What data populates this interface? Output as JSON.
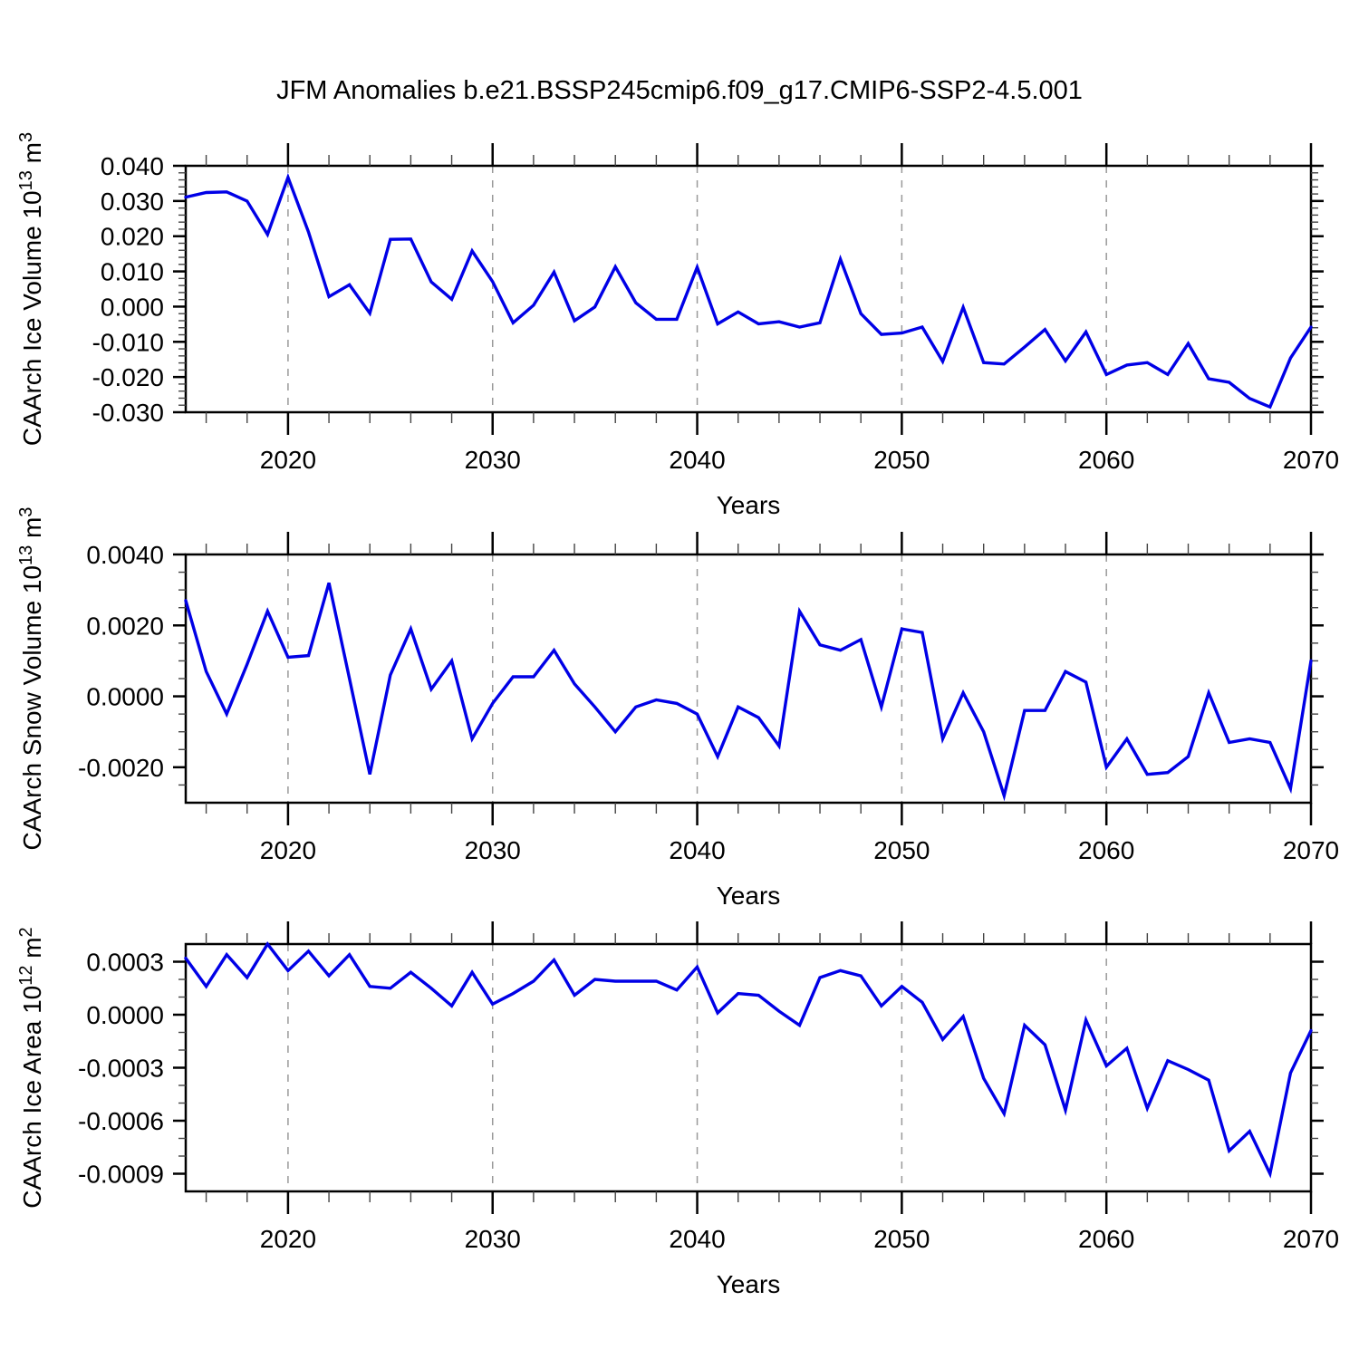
{
  "title": "JFM Anomalies b.e21.BSSP245cmip6.f09_g17.CMIP6-SSP2-4.5.001",
  "line_color": "#0000e6",
  "axis_color": "#000000",
  "minor_tick_color": "#444444",
  "grid_color": "#999999",
  "chart_data": {
    "type": "line",
    "title": "JFM Anomalies b.e21.BSSP245cmip6.f09_g17.CMIP6-SSP2-4.5.001",
    "legend": "none",
    "grid": "vertical-dashed-at-decades",
    "x": {
      "label": "Years",
      "xlim": [
        2015,
        2070
      ],
      "major_ticks": [
        2020,
        2030,
        2040,
        2050,
        2060,
        2070
      ],
      "major_tick_labels": [
        "2020",
        "2030",
        "2040",
        "2050",
        "2060",
        "2070"
      ],
      "minor_step": 2,
      "grid_years": [
        2020,
        2030,
        2040,
        2050,
        2060
      ],
      "years": [
        2015,
        2016,
        2017,
        2018,
        2019,
        2020,
        2021,
        2022,
        2023,
        2024,
        2025,
        2026,
        2027,
        2028,
        2029,
        2030,
        2031,
        2032,
        2033,
        2034,
        2035,
        2036,
        2037,
        2038,
        2039,
        2040,
        2041,
        2042,
        2043,
        2044,
        2045,
        2046,
        2047,
        2048,
        2049,
        2050,
        2051,
        2052,
        2053,
        2054,
        2055,
        2056,
        2057,
        2058,
        2059,
        2060,
        2061,
        2062,
        2063,
        2064,
        2065,
        2066,
        2067,
        2068,
        2069,
        2070
      ]
    },
    "panels": [
      {
        "name": "ice-volume",
        "ylabel": "CAArch Ice Volume 10^13 m^3",
        "ylabel_parts": [
          {
            "t": "CAArch Ice Volume 10"
          },
          {
            "t": "13",
            "sup": true
          },
          {
            "t": " m"
          },
          {
            "t": "3",
            "sup": true
          }
        ],
        "xlabel": "Years",
        "ylim": [
          -0.03,
          0.04
        ],
        "ytick_values": [
          0.04,
          0.03,
          0.02,
          0.01,
          0.0,
          -0.01,
          -0.02,
          -0.03
        ],
        "ytick_labels": [
          "0.040",
          "0.030",
          "0.020",
          "0.010",
          "0.000",
          "-0.010",
          "-0.020",
          "-0.030"
        ],
        "y_major_step": 0.01,
        "y_minor_step": 0.002,
        "values": [
          0.0311,
          0.0324,
          0.0326,
          0.03,
          0.0205,
          0.0367,
          0.0212,
          0.0028,
          0.0062,
          -0.0019,
          0.0191,
          0.0192,
          0.007,
          0.0021,
          0.0158,
          0.0071,
          -0.0046,
          0.0004,
          0.0098,
          -0.004,
          -0.0001,
          0.0113,
          0.0011,
          -0.0036,
          -0.0036,
          0.0112,
          -0.0049,
          -0.0015,
          -0.0049,
          -0.0043,
          -0.0058,
          -0.0046,
          0.0135,
          -0.002,
          -0.0079,
          -0.0075,
          -0.0058,
          -0.0156,
          -0.0002,
          -0.0159,
          -0.0163,
          -0.0115,
          -0.0065,
          -0.0154,
          -0.0072,
          -0.0193,
          -0.0166,
          -0.0159,
          -0.0193,
          -0.0105,
          -0.0205,
          -0.0215,
          -0.0261,
          -0.0285,
          -0.0146,
          -0.0058
        ]
      },
      {
        "name": "snow-volume",
        "ylabel": "CAArch Snow Volume 10^13 m^3",
        "ylabel_parts": [
          {
            "t": "CAArch Snow Volume 10"
          },
          {
            "t": "13",
            "sup": true
          },
          {
            "t": " m"
          },
          {
            "t": "3",
            "sup": true
          }
        ],
        "xlabel": "Years",
        "ylim": [
          -0.003,
          0.004
        ],
        "ytick_values": [
          0.004,
          0.002,
          0.0,
          -0.002
        ],
        "ytick_labels": [
          "0.0040",
          "0.0020",
          "0.0000",
          "-0.0020"
        ],
        "y_major_step": 0.002,
        "y_minor_step": 0.0005,
        "values": [
          0.0027,
          0.0007,
          -0.0005,
          0.0009,
          0.0024,
          0.0011,
          0.00115,
          0.0032,
          0.0005,
          -0.0022,
          0.0006,
          0.0019,
          0.0002,
          0.001,
          -0.0012,
          -0.0002,
          0.00055,
          0.00055,
          0.0013,
          0.00035,
          -0.0003,
          -0.001,
          -0.0003,
          -0.0001,
          -0.0002,
          -0.0005,
          -0.0017,
          -0.0003,
          -0.0006,
          -0.0014,
          0.0024,
          0.00145,
          0.0013,
          0.0016,
          -0.0003,
          0.0019,
          0.0018,
          -0.0012,
          0.0001,
          -0.001,
          -0.0028,
          -0.0004,
          -0.0004,
          0.0007,
          0.0004,
          -0.002,
          -0.0012,
          -0.0022,
          -0.00215,
          -0.0017,
          0.0001,
          -0.0013,
          -0.0012,
          -0.0013,
          -0.0026,
          0.001
        ]
      },
      {
        "name": "ice-area",
        "ylabel": "CAArch Ice Area 10^12 m^2",
        "ylabel_parts": [
          {
            "t": "CAArch Ice Area 10"
          },
          {
            "t": "12",
            "sup": true
          },
          {
            "t": " m"
          },
          {
            "t": "2",
            "sup": true
          }
        ],
        "xlabel": "Years",
        "ylim": [
          -0.001,
          0.0004
        ],
        "ytick_values": [
          0.0003,
          0.0,
          -0.0003,
          -0.0006,
          -0.0009
        ],
        "ytick_labels": [
          "0.0003",
          "0.0000",
          "-0.0003",
          "-0.0006",
          "-0.0009"
        ],
        "y_major_step": 0.0003,
        "y_minor_step": 0.0001,
        "values": [
          0.00032,
          0.00016,
          0.00034,
          0.00021,
          0.0004,
          0.00025,
          0.00036,
          0.00022,
          0.00034,
          0.00016,
          0.00015,
          0.00024,
          0.00015,
          5e-05,
          0.00024,
          6e-05,
          0.00012,
          0.00019,
          0.00031,
          0.00011,
          0.0002,
          0.00019,
          0.00019,
          0.00019,
          0.00014,
          0.00027,
          1e-05,
          0.00012,
          0.00011,
          2e-05,
          -6e-05,
          0.00021,
          0.00025,
          0.00022,
          5e-05,
          0.00016,
          7e-05,
          -0.00014,
          -1e-05,
          -0.00036,
          -0.00056,
          -6e-05,
          -0.00017,
          -0.00054,
          -3e-05,
          -0.00029,
          -0.00019,
          -0.00053,
          -0.00026,
          -0.00031,
          -0.00037,
          -0.00077,
          -0.00066,
          -0.0009,
          -0.00033,
          -9e-05
        ]
      }
    ]
  }
}
